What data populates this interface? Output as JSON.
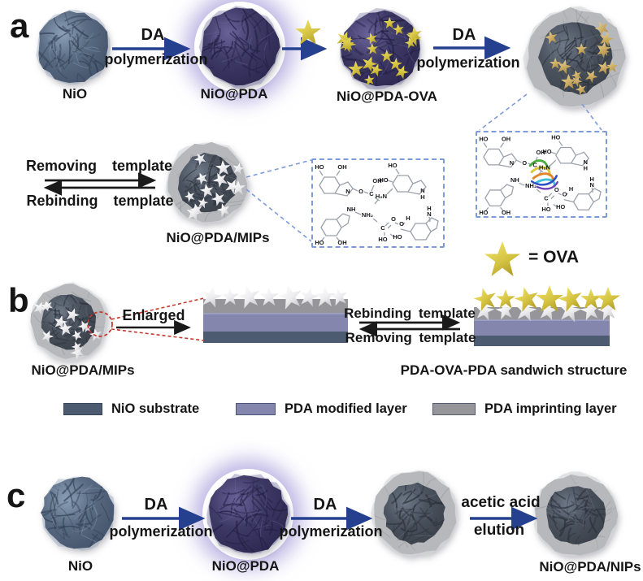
{
  "colors": {
    "arrow": "#24408e",
    "eq_arrow": "#1a1a1a",
    "dashed_blue": "#7d9bd8",
    "dashed_red": "#c5392f",
    "nio_substrate": "#4c5b70",
    "pda_modified": "#8486ad",
    "pda_imprinting": "#95959a",
    "star_gold": "#d7c94e",
    "star_white": "#f2f2f4",
    "nio_body": "#5a6c83",
    "pda_body": "#3e3a66",
    "shell_gray": "#b7b8bb",
    "core_dark": "#4b535f",
    "glow": "#9b8fd0"
  },
  "panel_a": {
    "label": "a",
    "nio_label": "NiO",
    "step1": {
      "top": "DA",
      "bottom": "polymerization"
    },
    "nio_pda_label": "NiO@PDA",
    "nio_pda_ova_label": "NiO@PDA-OVA",
    "step2": {
      "top": "DA",
      "bottom": "polymerization"
    },
    "removing": "Removing template",
    "rebinding": "Rebinding template",
    "mips_label": "NiO@PDA/MIPs",
    "ova_legend": "=  OVA"
  },
  "chem": {
    "labels": [
      "HO",
      "OH",
      "N",
      "O",
      "C",
      "OH",
      "H₂N",
      "HO",
      "HO",
      "N",
      "H",
      "NH",
      "NH₂",
      "HO",
      "OH",
      "C",
      "O",
      "O",
      "H",
      "HO",
      "HO",
      "H",
      "N"
    ]
  },
  "panel_b": {
    "label": "b",
    "mips_label": "NiO@PDA/MIPs",
    "enlarged": "Enlarged",
    "rebinding": "Rebinding  template",
    "removing": "Removing  template",
    "sandwich_label": "PDA-OVA-PDA sandwich structure"
  },
  "legend": {
    "items": [
      {
        "label": "NiO substrate",
        "color": "#4c5b70"
      },
      {
        "label": "PDA modified layer",
        "color": "#8486ad"
      },
      {
        "label": "PDA imprinting layer",
        "color": "#95959a"
      }
    ]
  },
  "panel_c": {
    "label": "c",
    "nio_label": "NiO",
    "step1": {
      "top": "DA",
      "bottom": "polymerization"
    },
    "nio_pda_label": "NiO@PDA",
    "step2": {
      "top": "DA",
      "bottom": "polymerization"
    },
    "step3": {
      "top": "acetic acid",
      "bottom": "elution"
    },
    "nips_label": "NiO@PDA/NIPs"
  }
}
